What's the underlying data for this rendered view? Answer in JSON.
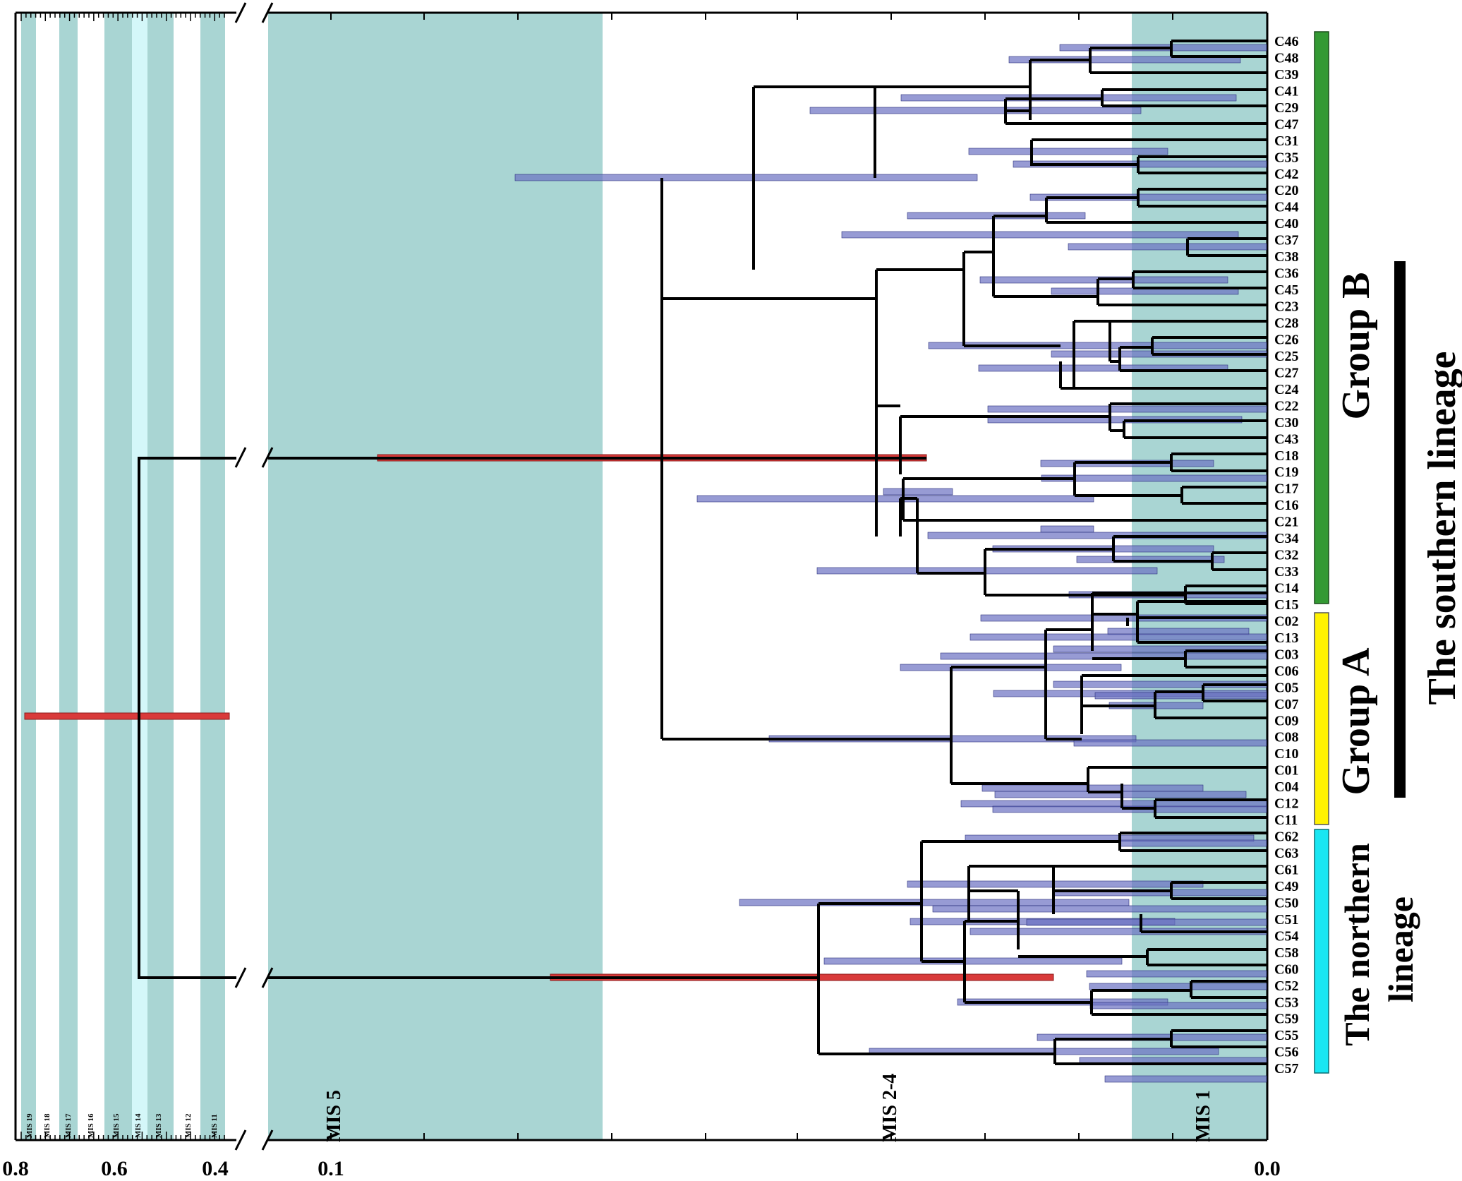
{
  "figure_type": "time-calibrated phylogenetic tree",
  "colors": {
    "mis_band": "#a9d5d3",
    "mis_band_light": "#d4f7f9",
    "hpd_bar": "#6b70c2",
    "hpd_bar_root": "#d93a3a",
    "group_b": "#339933",
    "group_a": "#fff200",
    "northern": "#19e6f2",
    "southern": "#000000"
  },
  "axis": {
    "left_ticks": [
      "0.8",
      "0.6",
      "0.4"
    ],
    "right_ticks": [
      "0.1",
      "0.0"
    ]
  },
  "mis_small": [
    "MIS 19",
    "MIS 18",
    "MIS 17",
    "MIS 16",
    "MIS 15",
    "MIS 14",
    "MIS 13",
    "MIS 12",
    "MIS 11"
  ],
  "mis_big": [
    "MIS 5",
    "MIS 2-4",
    "MIS 1"
  ],
  "tips": [
    "C46",
    "C48",
    "C39",
    "C41",
    "C29",
    "C47",
    "C31",
    "C35",
    "C42",
    "C20",
    "C44",
    "C40",
    "C37",
    "C38",
    "C36",
    "C45",
    "C23",
    "C28",
    "C26",
    "C25",
    "C27",
    "C24",
    "C22",
    "C30",
    "C43",
    "C18",
    "C19",
    "C17",
    "C16",
    "C21",
    "C34",
    "C32",
    "C33",
    "C14",
    "C15",
    "C02",
    "C13",
    "C03",
    "C06",
    "C05",
    "C07",
    "C09",
    "C08",
    "C10",
    "C01",
    "C04",
    "C12",
    "C11",
    "C62",
    "C63",
    "C61",
    "C49",
    "C50",
    "C51",
    "C54",
    "C58",
    "C60",
    "C52",
    "C53",
    "C59",
    "C55",
    "C56",
    "C57"
  ],
  "groups": {
    "group_b": "Group B",
    "group_a": "Group A",
    "southern": "The southern lineage",
    "northern_line1": "The northern",
    "northern_line2": "lineage"
  }
}
